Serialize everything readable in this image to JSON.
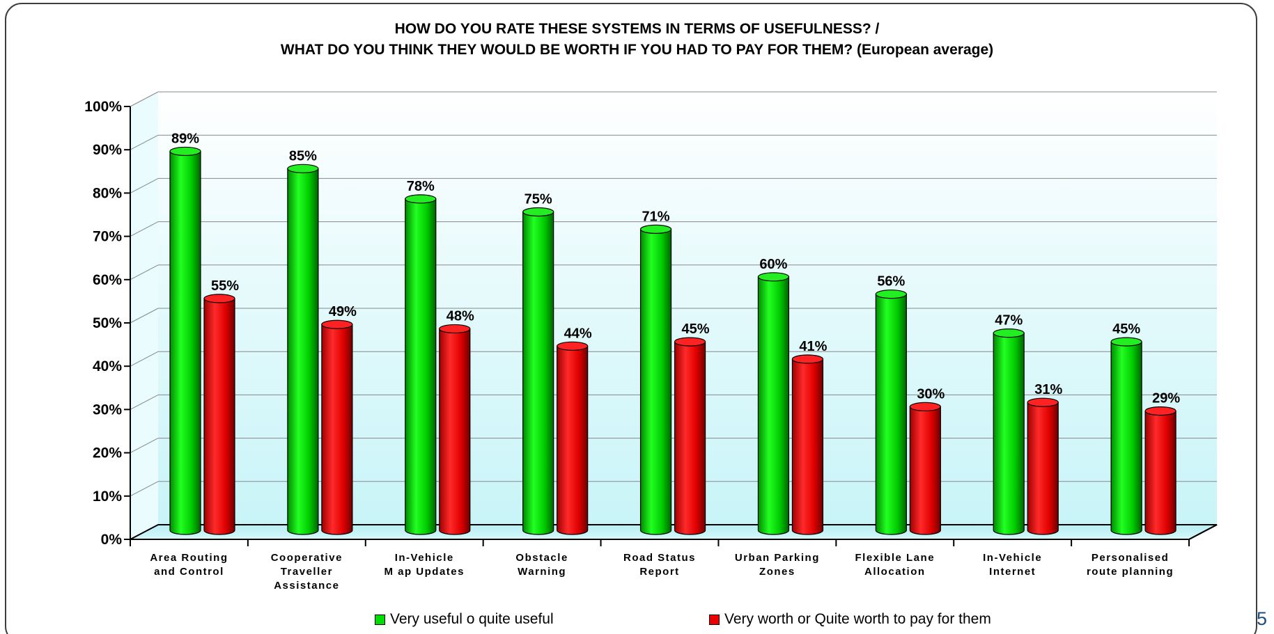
{
  "page_number": "5",
  "chart_data": {
    "type": "bar",
    "title_lines": [
      "HOW DO YOU RATE THESE SYSTEMS IN TERMS OF USEFULNESS? /",
      "WHAT DO YOU THINK THEY WOULD BE WORTH IF YOU HAD TO PAY FOR THEM? (European average)"
    ],
    "categories": [
      [
        "Area Routing",
        "and Control"
      ],
      [
        "Cooperative",
        "Traveller",
        "Assistance"
      ],
      [
        "In-Vehicle",
        "M ap Updates"
      ],
      [
        "Obstacle",
        "Warning"
      ],
      [
        "Road Status",
        "Report"
      ],
      [
        "Urban Parking",
        "Zones"
      ],
      [
        "Flexible Lane",
        "Allocation"
      ],
      [
        "In-Vehicle",
        "Internet"
      ],
      [
        "Personalised",
        "route planning"
      ]
    ],
    "series": [
      {
        "name": "Very useful o quite useful",
        "color": "#00dd00",
        "values": [
          89,
          85,
          78,
          75,
          71,
          60,
          56,
          47,
          45
        ],
        "labels": [
          "89%",
          "85%",
          "78%",
          "75%",
          "71%",
          "60%",
          "56%",
          "47%",
          "45%"
        ]
      },
      {
        "name": "Very worth or Quite worth to pay for them",
        "color": "#ee0000",
        "values": [
          55,
          49,
          48,
          44,
          45,
          41,
          30,
          31,
          29
        ],
        "labels": [
          "55%",
          "49%",
          "48%",
          "44%",
          "45%",
          "41%",
          "30%",
          "31%",
          "29%"
        ]
      }
    ],
    "ylim": [
      0,
      100
    ],
    "y_ticks": [
      "0%",
      "10%",
      "20%",
      "30%",
      "40%",
      "50%",
      "60%",
      "70%",
      "80%",
      "90%",
      "100%"
    ],
    "grid": true,
    "legend_position": "bottom",
    "style": "3d cylinders"
  }
}
